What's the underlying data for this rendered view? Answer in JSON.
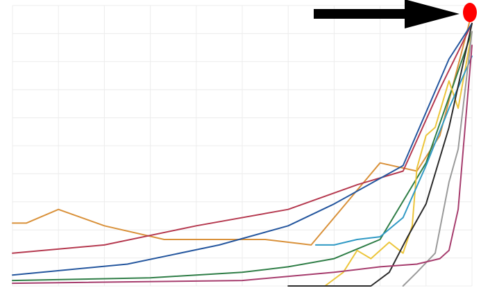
{
  "chart_data": {
    "type": "line",
    "title": "",
    "xlabel": "",
    "ylabel": "",
    "xlim": [
      0,
      100
    ],
    "ylim": [
      0,
      100
    ],
    "grid": true,
    "legend": "none",
    "x_ticks": [
      {
        "value": 0,
        "label": ""
      },
      {
        "value": 20,
        "label": ""
      },
      {
        "value": 40,
        "label": ""
      },
      {
        "value": 60,
        "label": ""
      },
      {
        "value": 80,
        "label": ""
      },
      {
        "value": 100,
        "label": ""
      }
    ],
    "annotations": [
      {
        "name": "arrow",
        "color": "#000000",
        "points_to": [
          100,
          100
        ]
      },
      {
        "name": "red-marker",
        "color": "#ff0000",
        "x": 100,
        "y": 100
      }
    ],
    "series": [
      {
        "color": "#d9913a",
        "points": [
          [
            0,
            23
          ],
          [
            3,
            23
          ],
          [
            10,
            28
          ],
          [
            20,
            22
          ],
          [
            33,
            17
          ],
          [
            45,
            17
          ],
          [
            55,
            17
          ],
          [
            65,
            15
          ],
          [
            80,
            45
          ],
          [
            88,
            42
          ],
          [
            93,
            55
          ],
          [
            100,
            100
          ]
        ]
      },
      {
        "color": "#b5394f",
        "points": [
          [
            0,
            12
          ],
          [
            20,
            15
          ],
          [
            40,
            22
          ],
          [
            60,
            28
          ],
          [
            75,
            37
          ],
          [
            85,
            42
          ],
          [
            93,
            72
          ],
          [
            100,
            96
          ]
        ]
      },
      {
        "color": "#24569e",
        "points": [
          [
            0,
            4
          ],
          [
            25,
            8
          ],
          [
            45,
            15
          ],
          [
            60,
            22
          ],
          [
            70,
            30
          ],
          [
            85,
            44
          ],
          [
            95,
            83
          ],
          [
            100,
            96
          ]
        ]
      },
      {
        "color": "#2e7d46",
        "points": [
          [
            0,
            2
          ],
          [
            30,
            3
          ],
          [
            50,
            5
          ],
          [
            60,
            7
          ],
          [
            70,
            10
          ],
          [
            80,
            17
          ],
          [
            90,
            45
          ],
          [
            100,
            93
          ]
        ]
      },
      {
        "color": "#ecc53a",
        "points": [
          [
            68,
            0
          ],
          [
            72,
            5
          ],
          [
            75,
            13
          ],
          [
            78,
            10
          ],
          [
            82,
            16
          ],
          [
            85,
            12
          ],
          [
            87,
            22
          ],
          [
            88,
            43
          ],
          [
            90,
            55
          ],
          [
            92,
            58
          ],
          [
            95,
            75
          ],
          [
            97,
            65
          ],
          [
            100,
            93
          ]
        ]
      },
      {
        "color": "#2f99c4",
        "points": [
          [
            66,
            15
          ],
          [
            70,
            15
          ],
          [
            75,
            17
          ],
          [
            80,
            18
          ],
          [
            85,
            25
          ],
          [
            90,
            44
          ],
          [
            95,
            65
          ],
          [
            100,
            84
          ]
        ]
      },
      {
        "color": "#2a2a2a",
        "points": [
          [
            60,
            0
          ],
          [
            78,
            0
          ],
          [
            82,
            5
          ],
          [
            86,
            18
          ],
          [
            90,
            30
          ],
          [
            95,
            58
          ],
          [
            100,
            96
          ]
        ]
      },
      {
        "color": "#9a9a9a",
        "points": [
          [
            85,
            0
          ],
          [
            88,
            5
          ],
          [
            92,
            12
          ],
          [
            95,
            38
          ],
          [
            97,
            50
          ],
          [
            100,
            93
          ]
        ]
      },
      {
        "color": "#a63c6d",
        "points": [
          [
            0,
            1
          ],
          [
            50,
            2
          ],
          [
            70,
            5
          ],
          [
            80,
            7
          ],
          [
            88,
            8
          ],
          [
            93,
            10
          ],
          [
            95,
            13
          ],
          [
            97,
            28
          ],
          [
            100,
            88
          ]
        ]
      }
    ]
  }
}
